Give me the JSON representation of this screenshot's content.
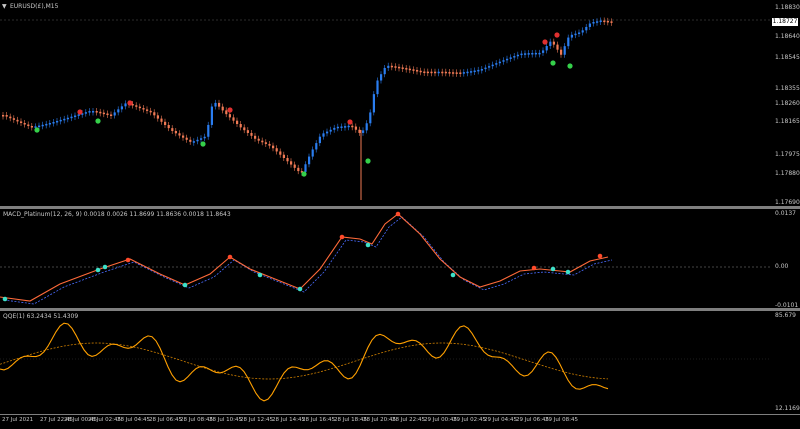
{
  "chart": {
    "title": "EURUSD(£),M15",
    "current_price": "1.18727",
    "price_ticks": [
      "1.18830",
      "1.18640",
      "1.18545",
      "1.18355",
      "1.18260",
      "1.18165",
      "1.17975",
      "1.17880",
      "1.17690"
    ],
    "colors": {
      "bull": "#2a7df0",
      "bear": "#f07a55",
      "up_signal": "#35d04a",
      "down_signal": "#e03030",
      "background": "#000000"
    }
  },
  "macd": {
    "label": "MACD_Platinum(12, 26, 9) 0.0018 0.0026 11.8699 11.8636 0.0018 11.8643",
    "ticks": [
      "0.0137",
      "0.00",
      "-0.0101"
    ],
    "colors": {
      "line": "#ff6a3a",
      "signal": "#4a6cff",
      "dot_up": "#3ee0c8",
      "dot_down": "#ff4a2a"
    }
  },
  "qqe": {
    "label": "QQE(1) 63.2434 51.4309",
    "ticks": [
      "85.679",
      "12.1169"
    ],
    "colors": {
      "rsi": "#ffa000",
      "trail": "#d08000"
    }
  },
  "time_axis": [
    "27 Jul 2021",
    "27 Jul 22:45",
    "28 Jul 00:45",
    "28 Jul 02:45",
    "28 Jul 04:45",
    "28 Jul 06:45",
    "28 Jul 08:45",
    "28 Jul 10:45",
    "28 Jul 12:45",
    "28 Jul 14:45",
    "28 Jul 16:45",
    "28 Jul 18:45",
    "28 Jul 20:45",
    "28 Jul 22:45",
    "29 Jul 00:45",
    "29 Jul 02:45",
    "29 Jul 04:45",
    "29 Jul 06:45",
    "29 Jul 08:45"
  ]
}
